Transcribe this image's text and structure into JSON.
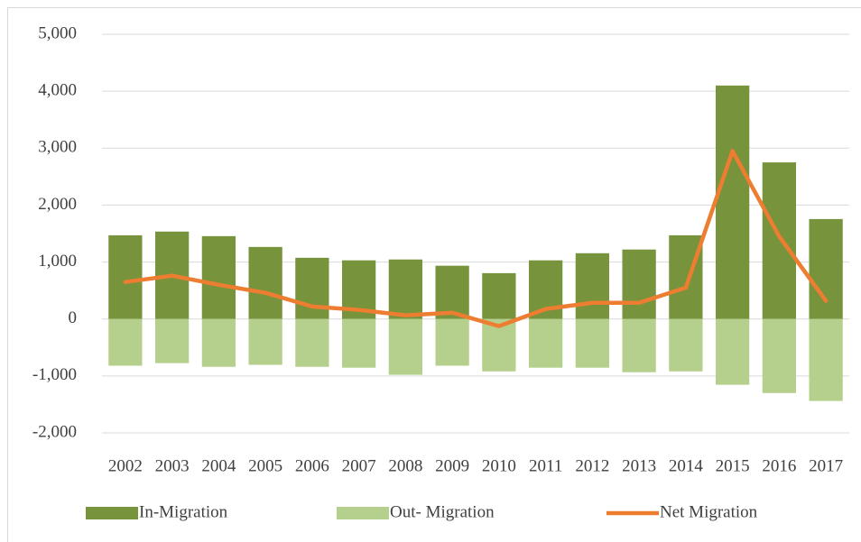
{
  "chart_data": {
    "type": "bar",
    "categories": [
      "2002",
      "2003",
      "2004",
      "2005",
      "2006",
      "2007",
      "2008",
      "2009",
      "2010",
      "2011",
      "2012",
      "2013",
      "2014",
      "2015",
      "2016",
      "2017"
    ],
    "series": [
      {
        "name": "In-Migration",
        "type": "bar",
        "color": "#77933c",
        "values": [
          1470,
          1535,
          1455,
          1265,
          1075,
          1030,
          1045,
          935,
          805,
          1030,
          1155,
          1220,
          1470,
          4100,
          2750,
          1755
        ]
      },
      {
        "name": "Out- Migration",
        "type": "bar",
        "color": "#b5d08c",
        "values": [
          -820,
          -775,
          -840,
          -805,
          -840,
          -855,
          -980,
          -820,
          -920,
          -855,
          -855,
          -935,
          -920,
          -1155,
          -1300,
          -1440
        ]
      },
      {
        "name": "Net Migration",
        "type": "line",
        "color": "#ed7d31",
        "values": [
          650,
          760,
          600,
          460,
          220,
          160,
          65,
          110,
          -125,
          175,
          285,
          285,
          550,
          2950,
          1450,
          320
        ]
      }
    ],
    "ylim": [
      -2000,
      5000
    ],
    "yticks": [
      {
        "value": -2000,
        "label": "-2,000"
      },
      {
        "value": -1000,
        "label": "-1,000"
      },
      0,
      {
        "value": 1000,
        "label": "1,000"
      },
      {
        "value": 2000,
        "label": "2,000"
      },
      {
        "value": 3000,
        "label": "3,000"
      },
      {
        "value": 4000,
        "label": "4,000"
      },
      {
        "value": 5000,
        "label": "5,000"
      }
    ],
    "grid": true,
    "legend": "bottom"
  }
}
